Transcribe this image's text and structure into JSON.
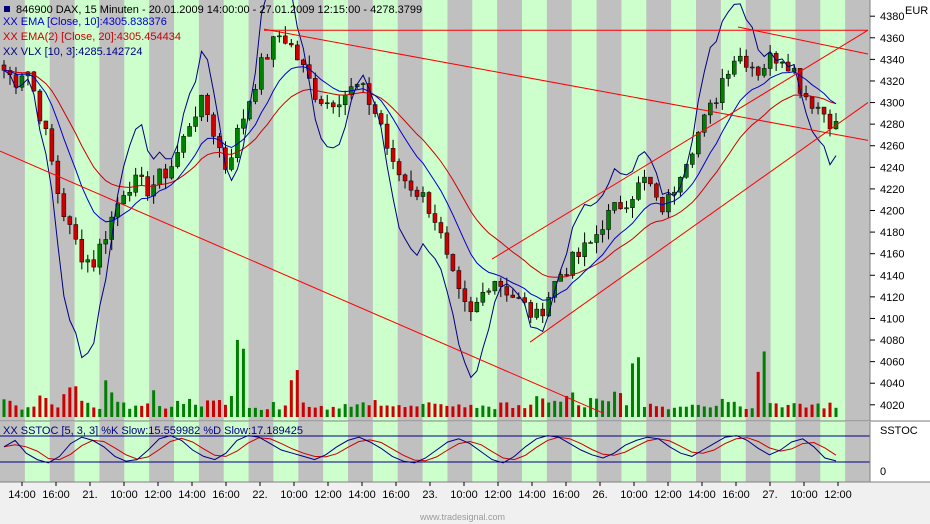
{
  "header": {
    "symbol_line": "846900  DAX, 15 Minuten - 20.01.2009 14:00:00 - 27.01.2009 12:15:00 - 4278.3799",
    "currency": "EUR"
  },
  "legend": [
    {
      "text": "XX EMA [Close, 10]:4305.838376",
      "color": "#0000cc"
    },
    {
      "text": "XX EMA(2) [Close, 20]:4305.454434",
      "color": "#cc0000"
    },
    {
      "text": "XX VLX [10, 3]:4285.142724",
      "color": "#000080"
    }
  ],
  "sub_panel": {
    "title": "XX SSTOC [5, 3, 3] %K Slow:15.559982 %D Slow:17.189425",
    "side_label": "SSTOC",
    "axis_zero": "0"
  },
  "watermark": "www.tradesignal.com",
  "colors": {
    "up": "#008000",
    "down": "#cc0000",
    "ema10": "#0000cc",
    "ema20": "#cc0000",
    "vlx": "#000080",
    "band_green": "#ccffcc",
    "band_gray": "#c0c0c0",
    "trendline": "#ff0000"
  },
  "chart_data": {
    "type": "candlestick",
    "y_ticks": [
      4020,
      4040,
      4060,
      4080,
      4100,
      4120,
      4140,
      4160,
      4180,
      4200,
      4220,
      4240,
      4260,
      4280,
      4300,
      4320,
      4340,
      4360,
      4380
    ],
    "ylim": [
      4005,
      4395
    ],
    "x_ticks": [
      "14:00",
      "16:00",
      "21.",
      "10:00",
      "12:00",
      "14:00",
      "16:00",
      "22.",
      "10:00",
      "12:00",
      "14:00",
      "16:00",
      "23.",
      "10:00",
      "12:00",
      "14:00",
      "16:00",
      "26.",
      "10:00",
      "12:00",
      "14:00",
      "16:00",
      "27.",
      "10:00",
      "12:00"
    ],
    "close_path": [
      4330,
      4320,
      4335,
      4300,
      4260,
      4210,
      4180,
      4160,
      4150,
      4175,
      4200,
      4225,
      4225,
      4220,
      4230,
      4240,
      4260,
      4290,
      4300,
      4270,
      4240,
      4270,
      4300,
      4330,
      4350,
      4365,
      4350,
      4330,
      4310,
      4300,
      4305,
      4310,
      4315,
      4300,
      4280,
      4240,
      4230,
      4220,
      4210,
      4190,
      4150,
      4120,
      4100,
      4120,
      4140,
      4130,
      4120,
      4110,
      4100,
      4120,
      4140,
      4150,
      4160,
      4170,
      4190,
      4200,
      4210,
      4220,
      4230,
      4200,
      4210,
      4240,
      4260,
      4280,
      4300,
      4330,
      4345,
      4340,
      4330,
      4340,
      4345,
      4335,
      4310,
      4300,
      4290,
      4278
    ],
    "volume": [
      12,
      8,
      10,
      15,
      9,
      22,
      35,
      12,
      8,
      30,
      14,
      10,
      12,
      18,
      9,
      11,
      14,
      10,
      12,
      20,
      16,
      55,
      12,
      8,
      10,
      15,
      40,
      12,
      10,
      9,
      11,
      8,
      10,
      12,
      9,
      14,
      10,
      8,
      11,
      9,
      12,
      10,
      9,
      11,
      8,
      10,
      12,
      9,
      14,
      16,
      12,
      18,
      10,
      14,
      12,
      20,
      15,
      40,
      12,
      10,
      9,
      11,
      14,
      12,
      10,
      18,
      12,
      10,
      55,
      14,
      12,
      10,
      9,
      11,
      10,
      8
    ],
    "stoch_k": [
      0.6,
      0.8,
      0.4,
      0.2,
      0.1,
      0.3,
      0.7,
      0.9,
      0.8,
      0.6,
      0.3,
      0.15,
      0.2,
      0.5,
      0.85,
      0.95,
      0.8,
      0.5,
      0.3,
      0.2,
      0.4,
      0.8,
      0.95,
      0.9,
      0.7,
      0.5,
      0.4,
      0.3,
      0.2,
      0.35,
      0.6,
      0.8,
      0.9,
      0.75,
      0.55,
      0.3,
      0.15,
      0.1,
      0.25,
      0.5,
      0.75,
      0.85,
      0.7,
      0.45,
      0.2,
      0.1,
      0.3,
      0.6,
      0.85,
      0.95,
      0.9,
      0.7,
      0.5,
      0.35,
      0.25,
      0.4,
      0.65,
      0.8,
      0.9,
      0.85,
      0.6,
      0.4,
      0.3,
      0.5,
      0.7,
      0.9,
      0.95,
      0.8,
      0.55,
      0.35,
      0.5,
      0.75,
      0.85,
      0.6,
      0.25,
      0.16
    ],
    "band_columns": 35,
    "trendlines": [
      {
        "p1": [
          0,
          4255
        ],
        "p2": [
          604,
          4012
        ]
      },
      {
        "p1": [
          264,
          4368
        ],
        "p2": [
          868,
          4265
        ]
      },
      {
        "p1": [
          264,
          4367
        ],
        "p2": [
          868,
          4367
        ]
      },
      {
        "p1": [
          492,
          4155
        ],
        "p2": [
          868,
          4367
        ]
      },
      {
        "p1": [
          530,
          4078
        ],
        "p2": [
          868,
          4300
        ]
      },
      {
        "p1": [
          738,
          4370
        ],
        "p2": [
          868,
          4345
        ]
      }
    ]
  }
}
